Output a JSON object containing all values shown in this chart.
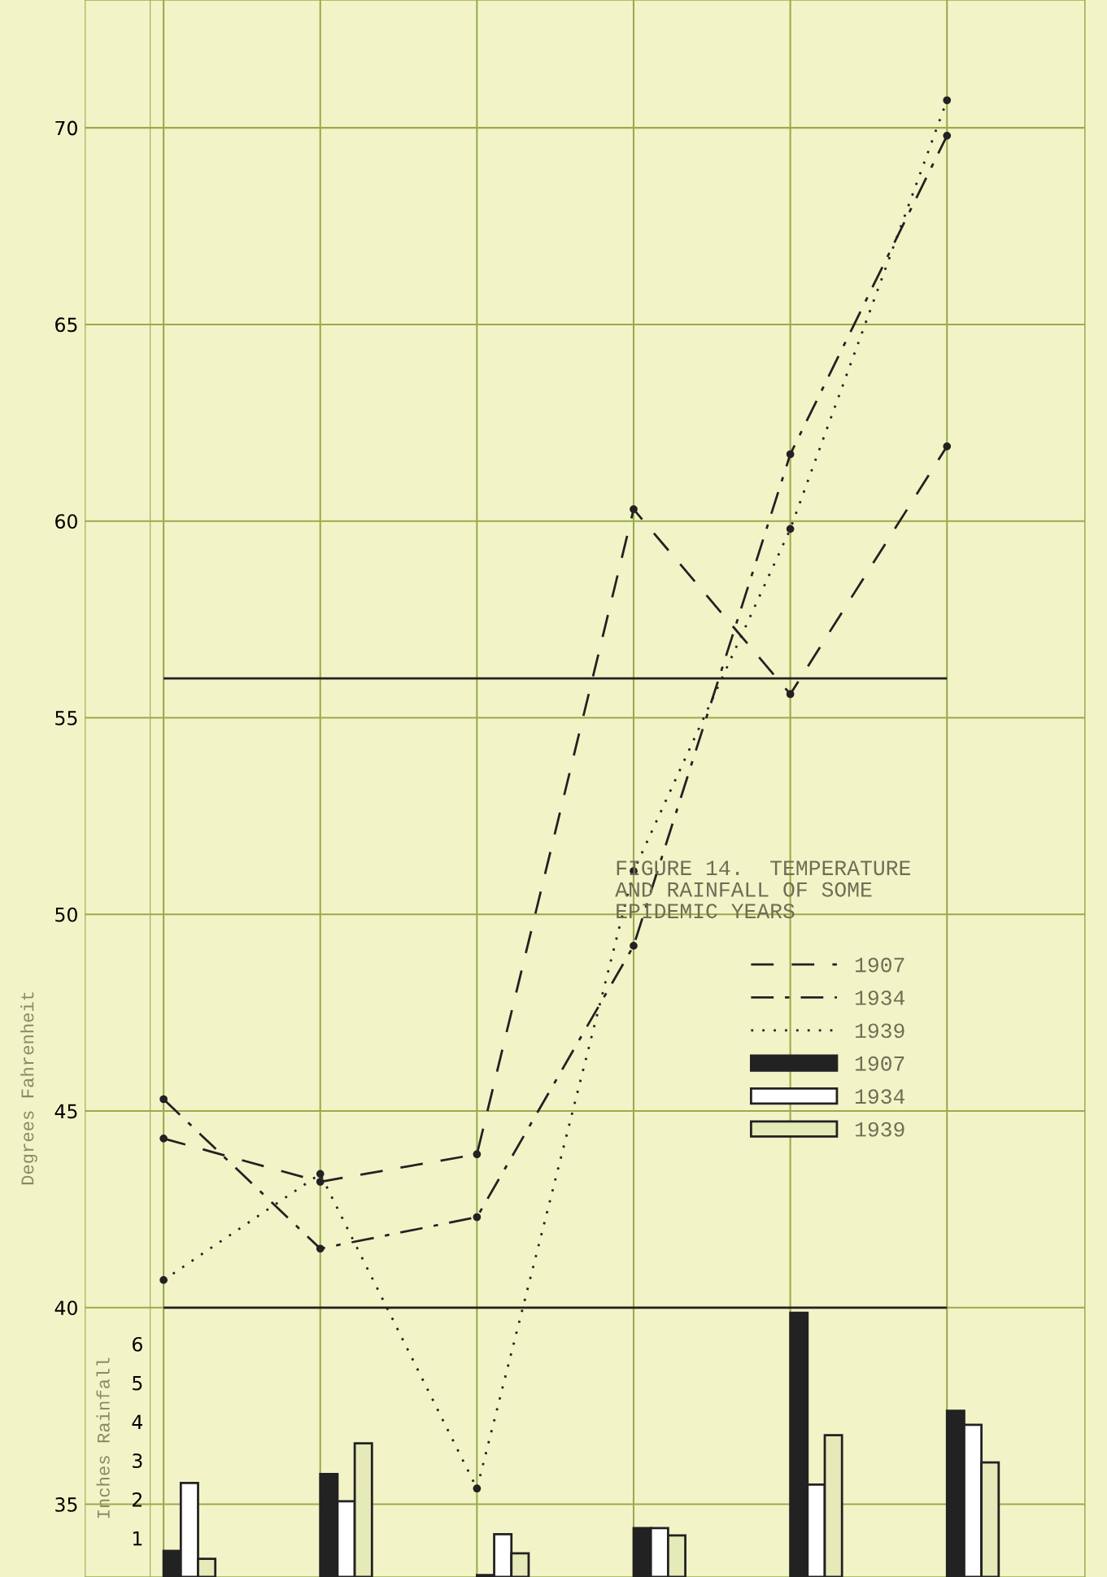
{
  "chart_data": {
    "type": "line",
    "title": "FIGURE 14.  TEMPERATURE\nAND RAINFALL OF SOME\nEPIDEMIC YEARS",
    "ylabel": "Degrees Fahrenheit",
    "y2label": "Inches Rainfall",
    "categories": [
      null,
      null,
      null,
      null,
      null,
      null
    ],
    "ylim": [
      33.15,
      73.25
    ],
    "yticks": [
      35,
      40,
      45,
      50,
      55,
      60,
      65,
      70
    ],
    "y2lim": [
      0,
      40.6
    ],
    "y2ticks": [
      1,
      2,
      3,
      4,
      5,
      6
    ],
    "grid": true,
    "legend": "right",
    "marker": "circle",
    "ref_lines": [
      {
        "axis": "y",
        "value": 56,
        "color": "#222222"
      },
      {
        "axis": "y",
        "value": 40,
        "color": "#222222"
      }
    ],
    "series": [
      {
        "name": "1907",
        "line_style": "dashed",
        "color": "#222222",
        "values": [
          44.3,
          43.2,
          43.9,
          60.3,
          55.6,
          61.9
        ]
      },
      {
        "name": "1934",
        "line_style": "dashdot",
        "color": "#222222",
        "values": [
          45.3,
          41.5,
          42.3,
          49.2,
          61.7,
          69.8
        ]
      },
      {
        "name": "1939",
        "line_style": "dotted",
        "color": "#222222",
        "values": [
          40.7,
          43.4,
          35.4,
          51.1,
          59.8,
          70.7
        ]
      },
      {
        "name": "1907",
        "type": "bar",
        "axis": "y2",
        "color": "#222222",
        "values": [
          0.67,
          2.65,
          0.05,
          1.26,
          6.8,
          4.28
        ]
      },
      {
        "name": "1934",
        "type": "bar",
        "axis": "y2",
        "color": "#ffffff",
        "values": [
          2.42,
          1.95,
          1.1,
          1.26,
          2.38,
          3.92
        ]
      },
      {
        "name": "1939",
        "type": "bar",
        "axis": "y2",
        "color": "#e6e9b8",
        "values": [
          0.47,
          3.44,
          0.61,
          1.07,
          3.65,
          2.95
        ]
      }
    ]
  }
}
